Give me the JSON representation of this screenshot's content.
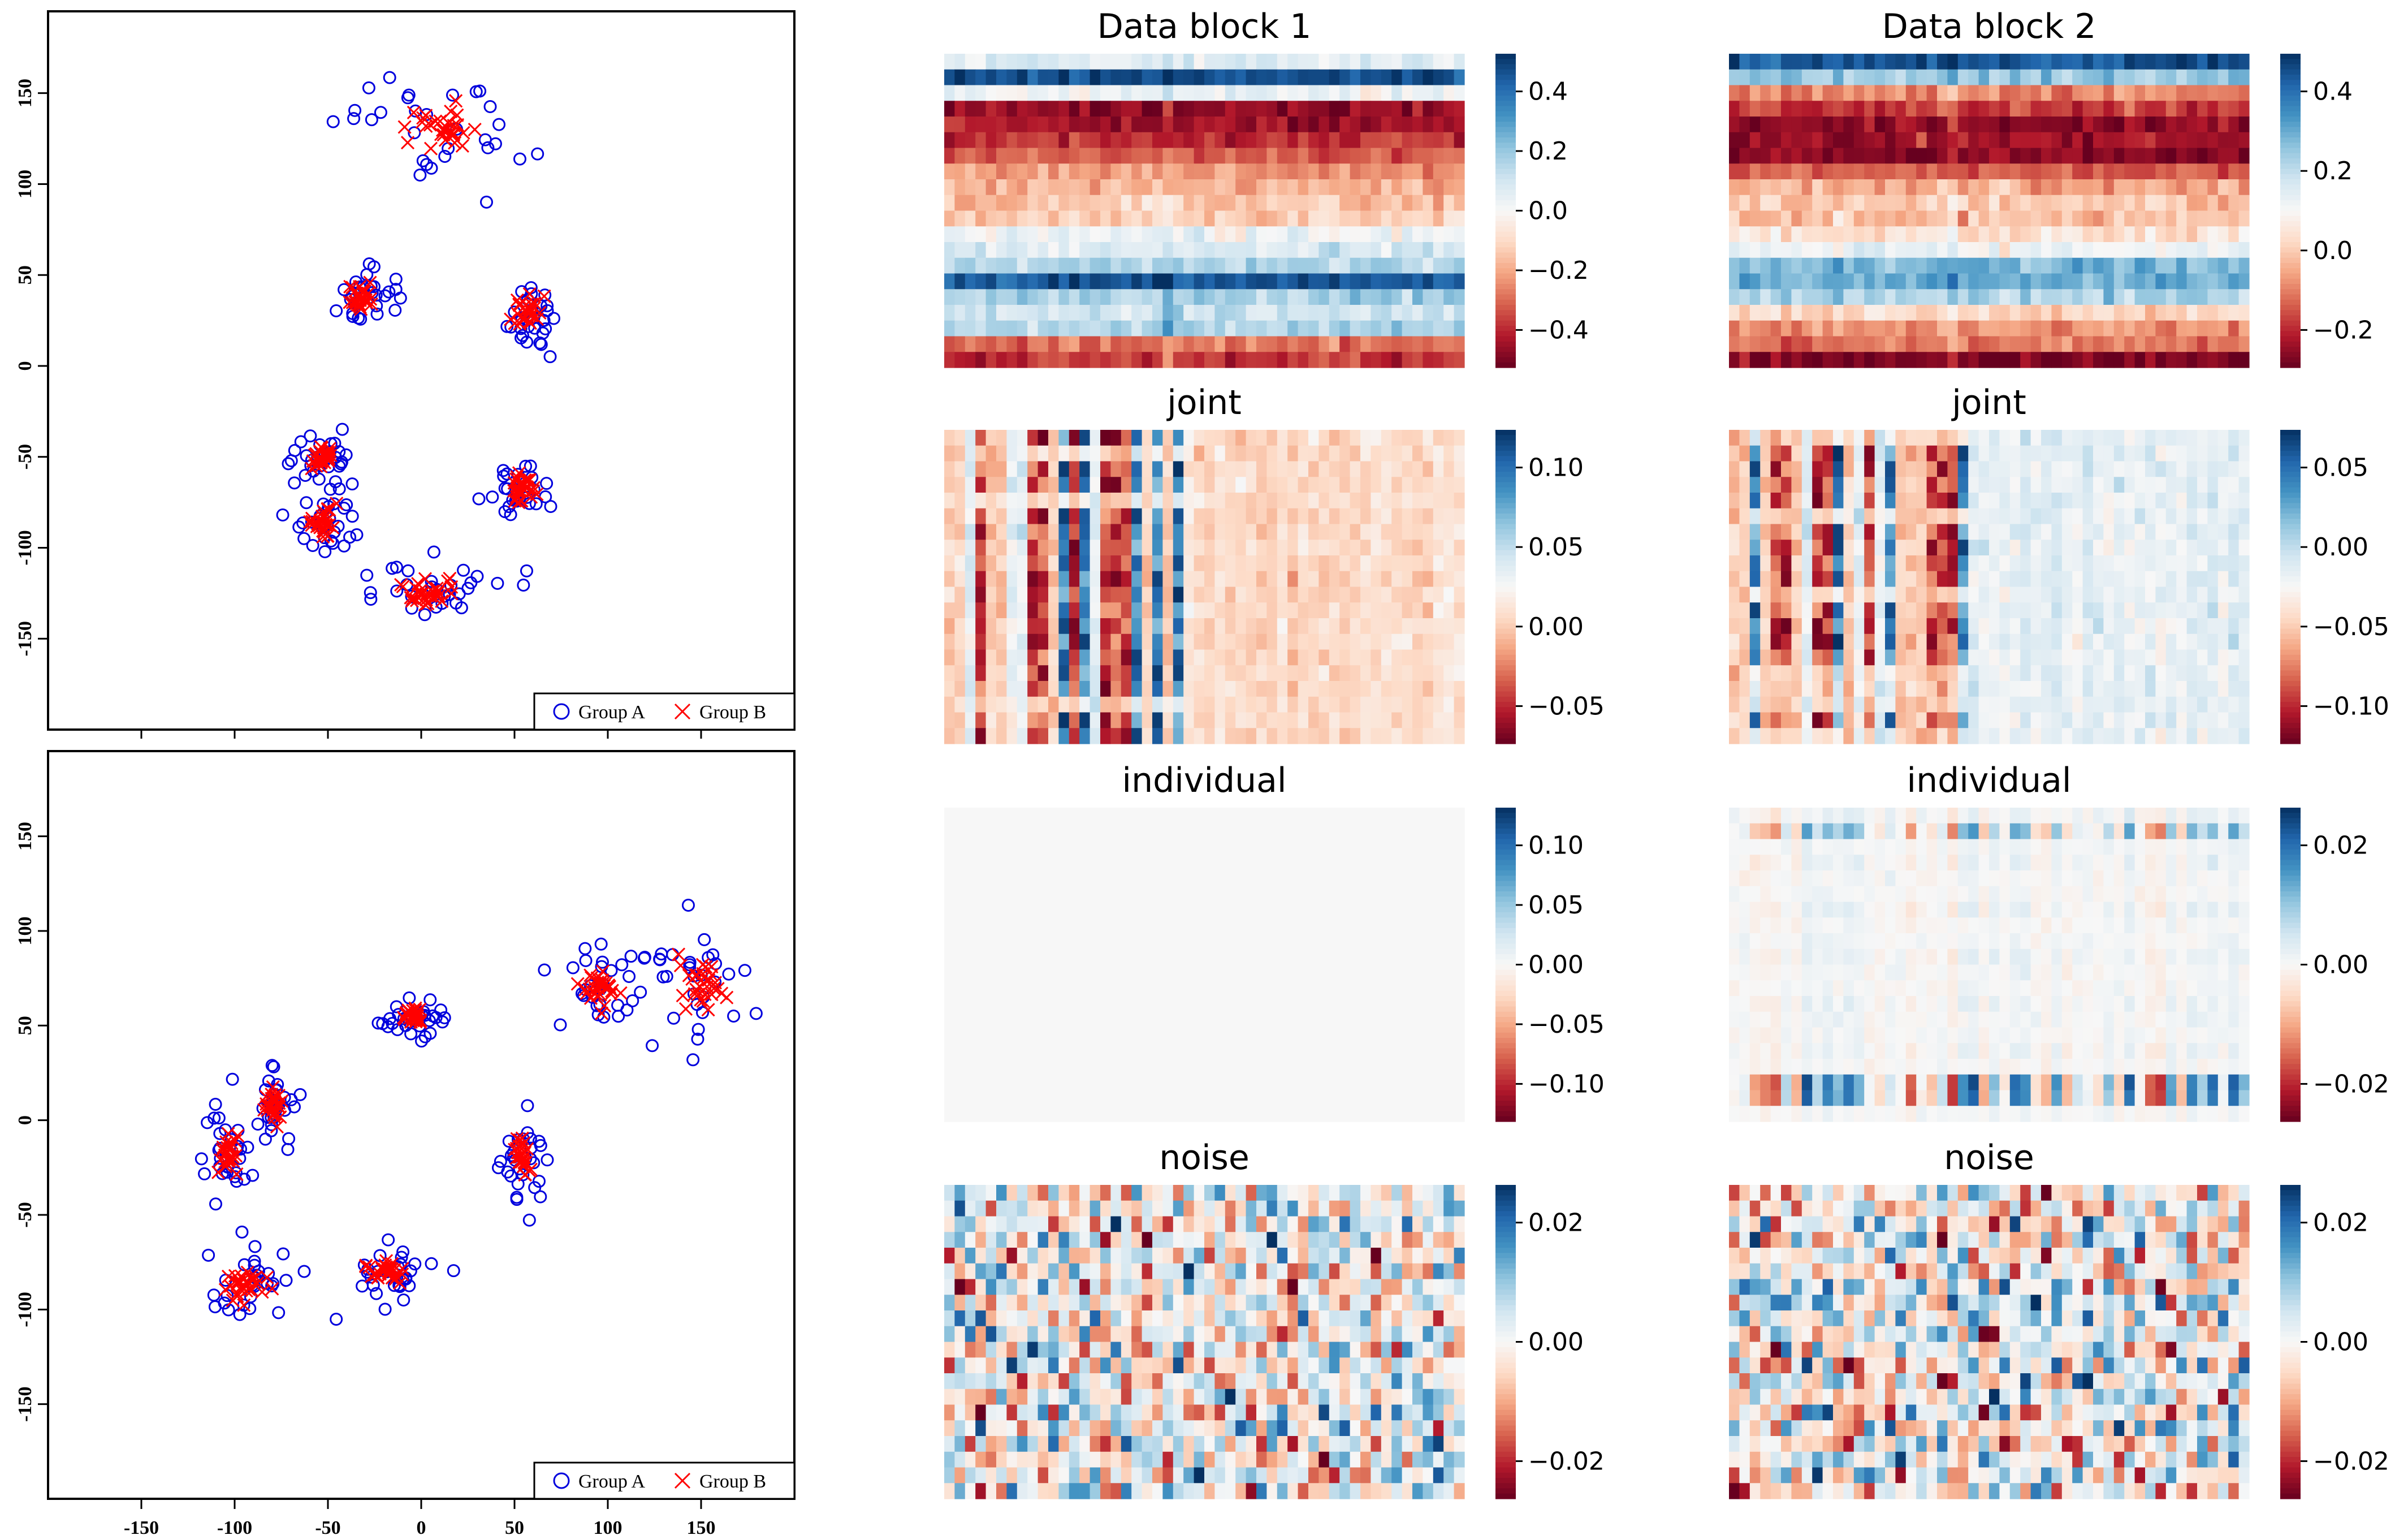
{
  "chart_data": {
    "type": "composite",
    "scatter_panels": [
      {
        "name": "scatter-top",
        "xlim": [
          -200,
          200
        ],
        "ylim": [
          -200,
          195
        ],
        "xticks": [],
        "yticks": [
          -150,
          -100,
          -50,
          0,
          50,
          100,
          150
        ],
        "legend": {
          "location": "bottom-right",
          "entries": [
            "Group A",
            "Group B"
          ]
        },
        "groupA_color": "#0000dd",
        "groupB_color": "#ff0000",
        "clusters": [
          {
            "cx": 10,
            "cy": 132,
            "sx": 18,
            "sy": 12
          },
          {
            "cx": -33,
            "cy": 37,
            "sx": 6,
            "sy": 6
          },
          {
            "cx": 57,
            "cy": 29,
            "sx": 6,
            "sy": 7
          },
          {
            "cx": -52,
            "cy": -50,
            "sx": 7,
            "sy": 5
          },
          {
            "cx": -52,
            "cy": -86,
            "sx": 6,
            "sy": 8
          },
          {
            "cx": 54,
            "cy": -67,
            "sx": 7,
            "sy": 7
          },
          {
            "cx": 3,
            "cy": -124,
            "sx": 15,
            "sy": 6
          }
        ]
      },
      {
        "name": "scatter-bottom",
        "xlim": [
          -200,
          200
        ],
        "ylim": [
          -200,
          195
        ],
        "xticks": [
          -150,
          -100,
          -50,
          0,
          50,
          100,
          150
        ],
        "yticks": [
          -150,
          -100,
          -50,
          0,
          50,
          100,
          150
        ],
        "legend": {
          "location": "bottom-right",
          "entries": [
            "Group A",
            "Group B"
          ]
        },
        "groupA_color": "#0000dd",
        "groupB_color": "#ff0000",
        "clusters": [
          {
            "cx": -4,
            "cy": 55,
            "sx": 7,
            "sy": 4
          },
          {
            "cx": 97,
            "cy": 70,
            "sx": 8,
            "sy": 9
          },
          {
            "cx": 150,
            "cy": 73,
            "sx": 9,
            "sy": 11
          },
          {
            "cx": -79,
            "cy": 7,
            "sx": 4,
            "sy": 8
          },
          {
            "cx": -103,
            "cy": -18,
            "sx": 5,
            "sy": 10
          },
          {
            "cx": 54,
            "cy": -18,
            "sx": 4,
            "sy": 11
          },
          {
            "cx": -93,
            "cy": -86,
            "sx": 9,
            "sy": 8
          },
          {
            "cx": -18,
            "cy": -80,
            "sx": 8,
            "sy": 5
          }
        ]
      }
    ],
    "heatmap_panels": [
      {
        "name": "data-block-1",
        "title": "Data block 1",
        "pattern": "rows",
        "colorbar_ticks": [
          "0.4",
          "0.2",
          "0.0",
          "−0.2",
          "−0.4"
        ]
      },
      {
        "name": "data-block-2",
        "title": "Data block 2",
        "pattern": "rows",
        "colorbar_ticks": [
          "0.4",
          "0.2",
          "0.0",
          "−0.2"
        ]
      },
      {
        "name": "joint-1",
        "title": "joint",
        "pattern": "joint",
        "colorbar_ticks": [
          "0.10",
          "0.05",
          "0.00",
          "−0.05"
        ]
      },
      {
        "name": "joint-2",
        "title": "joint",
        "pattern": "joint",
        "colorbar_ticks": [
          "0.05",
          "0.00",
          "−0.05",
          "−0.10"
        ]
      },
      {
        "name": "individual-1",
        "title": "individual",
        "pattern": "blank",
        "colorbar_ticks": [
          "0.10",
          "0.05",
          "0.00",
          "−0.05",
          "−0.10"
        ]
      },
      {
        "name": "individual-2",
        "title": "individual",
        "pattern": "individual",
        "colorbar_ticks": [
          "0.02",
          "0.00",
          "−0.02"
        ]
      },
      {
        "name": "noise-1",
        "title": "noise",
        "pattern": "noise",
        "colorbar_ticks": [
          "0.02",
          "0.00",
          "−0.02"
        ]
      },
      {
        "name": "noise-2",
        "title": "noise",
        "pattern": "noise",
        "colorbar_ticks": [
          "0.02",
          "0.00",
          "−0.02"
        ]
      }
    ],
    "colormap": "RdBu"
  }
}
